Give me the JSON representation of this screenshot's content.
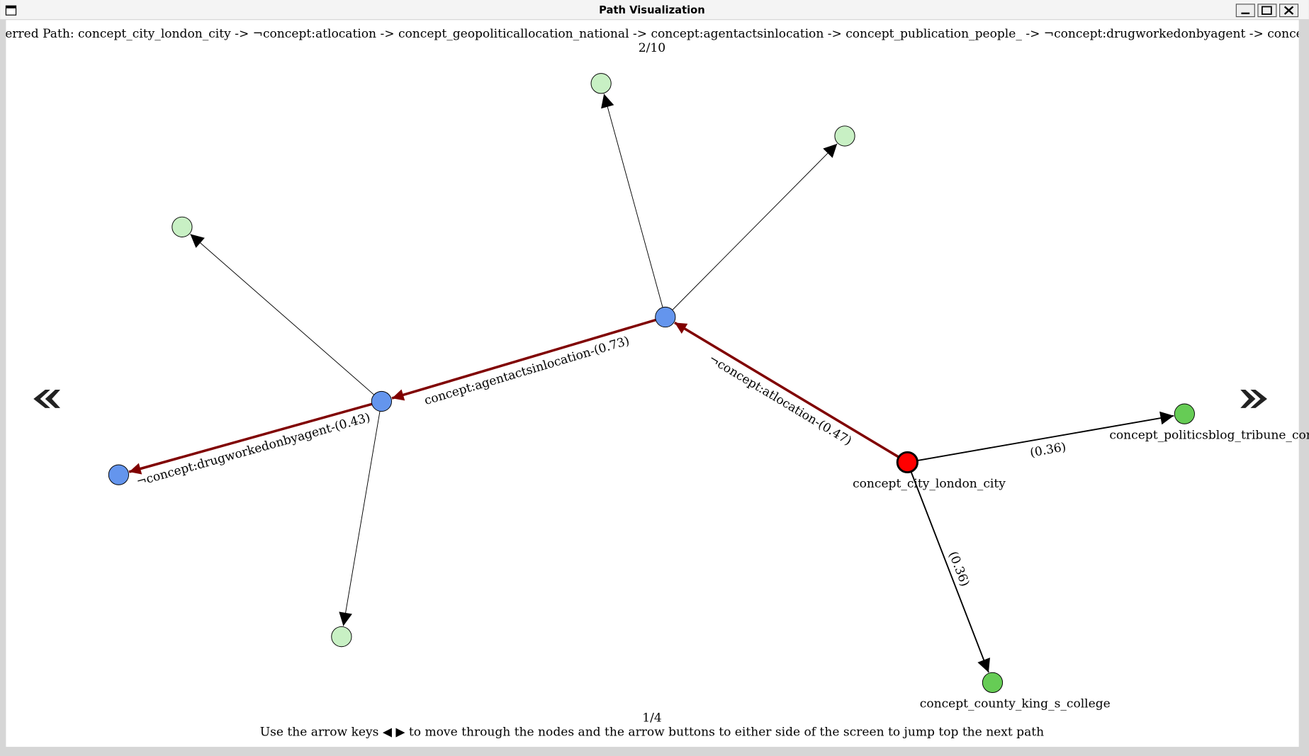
{
  "window": {
    "title": "Path Visualization"
  },
  "header": {
    "path": "erred Path: concept_city_london_city -> ¬concept:atlocation -> concept_geopoliticallocation_national -> concept:agentactsinlocation -> concept_publication_people_ -> ¬concept:drugworkedonbyagent -> concept_drug_vitamin",
    "counter": "2/10"
  },
  "graph": {
    "node_labels": [
      "concept_city_london_city",
      "concept_politicsblog_tribune_con",
      "concept_county_king_s_college"
    ],
    "edge_labels": [
      "¬concept:atlocation-(0.47)",
      "concept:agentactsinlocation-(0.73)",
      "¬concept:drugworkedonbyagent-(0.43)",
      "(0.36)",
      "(0.36)"
    ]
  },
  "footer": {
    "page": "1/4",
    "instructions": "Use the arrow keys ◀ ▶ to move through the nodes and the arrow buttons to either side of the screen to jump top the next path"
  }
}
